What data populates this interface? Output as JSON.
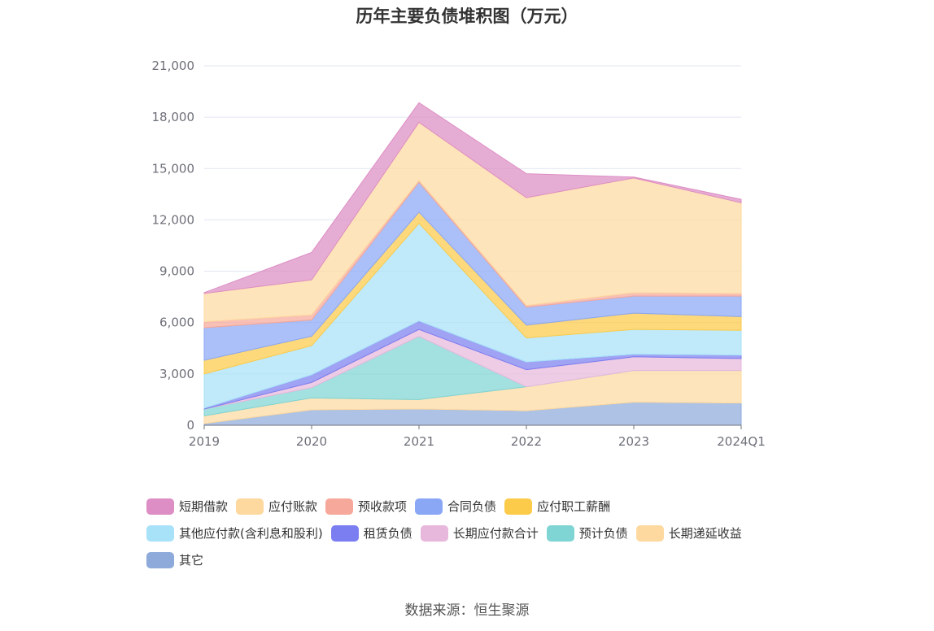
{
  "chart_data": {
    "type": "area",
    "stacked": true,
    "title": "历年主要负债堆积图（万元）",
    "x": [
      "2019",
      "2020",
      "2021",
      "2022",
      "2023",
      "2024Q1"
    ],
    "y_ticks": [
      "0",
      "3,000",
      "6,000",
      "9,000",
      "12,000",
      "15,000",
      "18,000",
      "21,000"
    ],
    "ylim": [
      0,
      21000
    ],
    "grid": true,
    "legend_position": "bottom",
    "series": [
      {
        "name": "其它",
        "color": "#8eaadb",
        "values": [
          100,
          900,
          950,
          850,
          1350,
          1300
        ]
      },
      {
        "name": "长期递延收益",
        "color": "#fdd9a0",
        "values": [
          450,
          700,
          550,
          1400,
          1850,
          1900
        ]
      },
      {
        "name": "预计负债",
        "color": "#7fd4d4",
        "values": [
          400,
          600,
          3700,
          0,
          0,
          0
        ]
      },
      {
        "name": "长期应付款合计",
        "color": "#e8b8dc",
        "values": [
          0,
          300,
          400,
          1000,
          800,
          700
        ]
      },
      {
        "name": "租赁负债",
        "color": "#7b7ef0",
        "values": [
          50,
          450,
          500,
          450,
          150,
          200
        ]
      },
      {
        "name": "其他应付款(含利息和股利)",
        "color": "#a8e2f8",
        "values": [
          2000,
          1700,
          5700,
          1400,
          1450,
          1450
        ]
      },
      {
        "name": "应付职工薪酬",
        "color": "#fccb4a",
        "values": [
          800,
          550,
          650,
          750,
          950,
          800
        ]
      },
      {
        "name": "合同负债",
        "color": "#8aa7f5",
        "values": [
          1900,
          950,
          1750,
          1050,
          1000,
          1200
        ]
      },
      {
        "name": "预收款项",
        "color": "#f6a89a",
        "values": [
          350,
          300,
          100,
          100,
          200,
          150
        ]
      },
      {
        "name": "应付账款",
        "color": "#fdd9a0",
        "values": [
          1650,
          2050,
          3400,
          6300,
          6700,
          5300
        ]
      },
      {
        "name": "短期借款",
        "color": "#dd8ec4",
        "values": [
          50,
          1600,
          1150,
          1400,
          50,
          200
        ]
      }
    ]
  },
  "legend": [
    [
      "短期借款",
      "应付账款",
      "预收款项",
      "合同负债",
      "应付职工薪酬"
    ],
    [
      "其他应付款(含利息和股利)",
      "租赁负债",
      "长期应付款合计",
      "预计负债",
      "长期递延收益"
    ],
    [
      "其它"
    ]
  ],
  "source_text": "数据来源：恒生聚源"
}
